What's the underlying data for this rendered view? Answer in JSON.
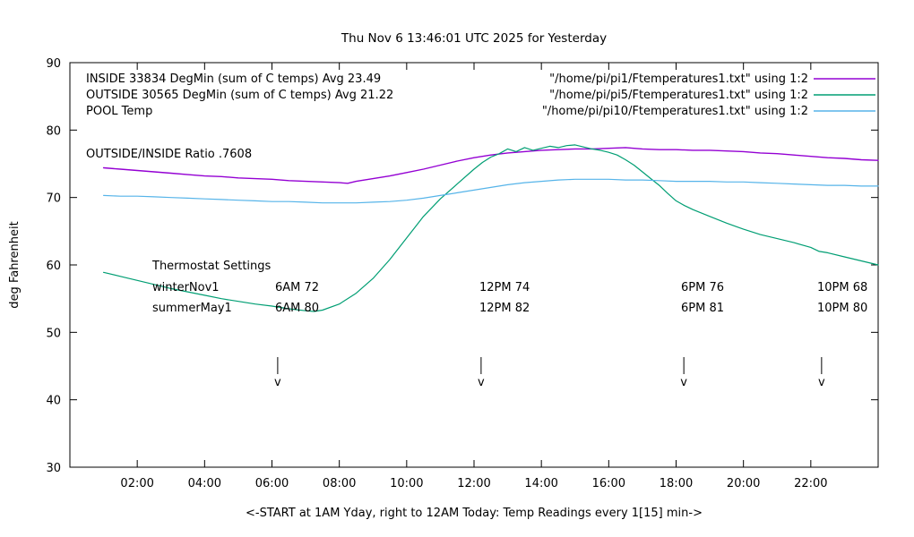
{
  "chart_data": {
    "type": "line",
    "title": "Thu Nov  6 13:46:01 UTC 2025 for Yesterday",
    "xlabel": "<-START at 1AM Yday, right to 12AM Today:  Temp Readings every 1[15] min->",
    "ylabel": "deg Fahrenheit",
    "xlim": [
      0,
      24
    ],
    "ylim": [
      30,
      90
    ],
    "grid": false,
    "legend_position": "top-inside",
    "x_ticks": [
      {
        "value": 2,
        "label": "02:00"
      },
      {
        "value": 4,
        "label": "04:00"
      },
      {
        "value": 6,
        "label": "06:00"
      },
      {
        "value": 8,
        "label": "08:00"
      },
      {
        "value": 10,
        "label": "10:00"
      },
      {
        "value": 12,
        "label": "12:00"
      },
      {
        "value": 14,
        "label": "14:00"
      },
      {
        "value": 16,
        "label": "16:00"
      },
      {
        "value": 18,
        "label": "18:00"
      },
      {
        "value": 20,
        "label": "20:00"
      },
      {
        "value": 22,
        "label": "22:00"
      }
    ],
    "y_ticks": [
      {
        "value": 30,
        "label": "30"
      },
      {
        "value": 40,
        "label": "40"
      },
      {
        "value": 50,
        "label": "50"
      },
      {
        "value": 60,
        "label": "60"
      },
      {
        "value": 70,
        "label": "70"
      },
      {
        "value": 80,
        "label": "80"
      },
      {
        "value": 90,
        "label": "90"
      }
    ],
    "series": [
      {
        "name": "INSIDE",
        "legend_label": "INSIDE 33834 DegMin (sum of C temps) Avg 23.49",
        "file_label": "\"/home/pi/pi1/Ftemperatures1.txt\" using 1:2",
        "color": "#9400d3",
        "points": [
          [
            1,
            74.4
          ],
          [
            1.5,
            74.2
          ],
          [
            2,
            74
          ],
          [
            2.5,
            73.8
          ],
          [
            3,
            73.6
          ],
          [
            3.5,
            73.4
          ],
          [
            4,
            73.2
          ],
          [
            4.5,
            73.1
          ],
          [
            5,
            72.9
          ],
          [
            5.5,
            72.8
          ],
          [
            6,
            72.7
          ],
          [
            6.5,
            72.5
          ],
          [
            7,
            72.4
          ],
          [
            7.5,
            72.3
          ],
          [
            8,
            72.2
          ],
          [
            8.25,
            72.1
          ],
          [
            8.5,
            72.4
          ],
          [
            9,
            72.8
          ],
          [
            9.5,
            73.2
          ],
          [
            10,
            73.7
          ],
          [
            10.5,
            74.2
          ],
          [
            11,
            74.8
          ],
          [
            11.5,
            75.4
          ],
          [
            12,
            75.9
          ],
          [
            12.5,
            76.3
          ],
          [
            13,
            76.6
          ],
          [
            13.5,
            76.8
          ],
          [
            14,
            77
          ],
          [
            14.5,
            77.1
          ],
          [
            15,
            77.2
          ],
          [
            15.5,
            77.2
          ],
          [
            16,
            77.3
          ],
          [
            16.5,
            77.4
          ],
          [
            17,
            77.2
          ],
          [
            17.5,
            77.1
          ],
          [
            18,
            77.1
          ],
          [
            18.5,
            77
          ],
          [
            19,
            77
          ],
          [
            19.5,
            76.9
          ],
          [
            20,
            76.8
          ],
          [
            20.5,
            76.6
          ],
          [
            21,
            76.5
          ],
          [
            21.5,
            76.3
          ],
          [
            22,
            76.1
          ],
          [
            22.5,
            75.9
          ],
          [
            23,
            75.8
          ],
          [
            23.5,
            75.6
          ],
          [
            24,
            75.5
          ]
        ]
      },
      {
        "name": "OUTSIDE",
        "legend_label": "OUTSIDE 30565 DegMin (sum of C temps) Avg 21.22",
        "file_label": "\"/home/pi/pi5/Ftemperatures1.txt\" using 1:2",
        "color": "#009e73",
        "points": [
          [
            1,
            58.9
          ],
          [
            1.5,
            58.3
          ],
          [
            2,
            57.7
          ],
          [
            2.5,
            57.1
          ],
          [
            3,
            56.5
          ],
          [
            3.5,
            56
          ],
          [
            4,
            55.5
          ],
          [
            4.5,
            55
          ],
          [
            5,
            54.6
          ],
          [
            5.5,
            54.2
          ],
          [
            6,
            53.9
          ],
          [
            6.5,
            53.5
          ],
          [
            7,
            53.2
          ],
          [
            7.25,
            53.1
          ],
          [
            7.5,
            53.3
          ],
          [
            8,
            54.2
          ],
          [
            8.5,
            55.8
          ],
          [
            9,
            58
          ],
          [
            9.5,
            60.8
          ],
          [
            10,
            64
          ],
          [
            10.5,
            67.2
          ],
          [
            11,
            69.8
          ],
          [
            11.5,
            72
          ],
          [
            12,
            74.2
          ],
          [
            12.25,
            75.2
          ],
          [
            12.5,
            76
          ],
          [
            12.75,
            76.5
          ],
          [
            13,
            77.2
          ],
          [
            13.25,
            76.8
          ],
          [
            13.5,
            77.4
          ],
          [
            13.75,
            77
          ],
          [
            14,
            77.3
          ],
          [
            14.25,
            77.6
          ],
          [
            14.5,
            77.4
          ],
          [
            14.75,
            77.7
          ],
          [
            15,
            77.8
          ],
          [
            15.25,
            77.5
          ],
          [
            15.5,
            77.2
          ],
          [
            15.75,
            77
          ],
          [
            16,
            76.7
          ],
          [
            16.25,
            76.3
          ],
          [
            16.5,
            75.6
          ],
          [
            16.75,
            74.8
          ],
          [
            17,
            73.8
          ],
          [
            17.25,
            72.8
          ],
          [
            17.5,
            71.8
          ],
          [
            17.75,
            70.6
          ],
          [
            18,
            69.5
          ],
          [
            18.25,
            68.8
          ],
          [
            18.5,
            68.2
          ],
          [
            19,
            67.2
          ],
          [
            19.5,
            66.2
          ],
          [
            20,
            65.3
          ],
          [
            20.5,
            64.5
          ],
          [
            21,
            63.9
          ],
          [
            21.5,
            63.3
          ],
          [
            22,
            62.6
          ],
          [
            22.25,
            62
          ],
          [
            22.5,
            61.8
          ],
          [
            23,
            61.2
          ],
          [
            23.5,
            60.6
          ],
          [
            24,
            60
          ]
        ]
      },
      {
        "name": "POOL",
        "legend_label": "POOL Temp",
        "file_label": "\"/home/pi/pi10/Ftemperatures1.txt\" using 1:2",
        "color": "#56b4e9",
        "points": [
          [
            1,
            70.3
          ],
          [
            1.5,
            70.2
          ],
          [
            2,
            70.2
          ],
          [
            2.5,
            70.1
          ],
          [
            3,
            70
          ],
          [
            3.5,
            69.9
          ],
          [
            4,
            69.8
          ],
          [
            4.5,
            69.7
          ],
          [
            5,
            69.6
          ],
          [
            5.5,
            69.5
          ],
          [
            6,
            69.4
          ],
          [
            6.5,
            69.4
          ],
          [
            7,
            69.3
          ],
          [
            7.5,
            69.2
          ],
          [
            8,
            69.2
          ],
          [
            8.5,
            69.2
          ],
          [
            9,
            69.3
          ],
          [
            9.5,
            69.4
          ],
          [
            10,
            69.6
          ],
          [
            10.5,
            69.9
          ],
          [
            11,
            70.3
          ],
          [
            11.5,
            70.7
          ],
          [
            12,
            71.1
          ],
          [
            12.5,
            71.5
          ],
          [
            13,
            71.9
          ],
          [
            13.5,
            72.2
          ],
          [
            14,
            72.4
          ],
          [
            14.5,
            72.6
          ],
          [
            15,
            72.7
          ],
          [
            15.5,
            72.7
          ],
          [
            16,
            72.7
          ],
          [
            16.5,
            72.6
          ],
          [
            17,
            72.6
          ],
          [
            17.5,
            72.5
          ],
          [
            18,
            72.4
          ],
          [
            18.5,
            72.4
          ],
          [
            19,
            72.4
          ],
          [
            19.5,
            72.3
          ],
          [
            20,
            72.3
          ],
          [
            20.5,
            72.2
          ],
          [
            21,
            72.1
          ],
          [
            21.5,
            72
          ],
          [
            22,
            71.9
          ],
          [
            22.5,
            71.8
          ],
          [
            23,
            71.8
          ],
          [
            23.5,
            71.7
          ],
          [
            24,
            71.7
          ]
        ]
      }
    ],
    "annotations": {
      "ratio_text": "OUTSIDE/INSIDE Ratio .7608",
      "thermostat": {
        "heading": "Thermostat Settings",
        "rows": [
          {
            "name": "winterNov1",
            "settings": [
              "6AM 72",
              "12PM 74",
              "6PM 76",
              "10PM 68"
            ]
          },
          {
            "name": "summerMay1",
            "settings": [
              "6AM 80",
              "12PM 82",
              "6PM 81",
              "10PM 80"
            ]
          }
        ]
      },
      "arrow_hours": [
        6.17,
        12.21,
        18.23,
        22.32
      ],
      "arrow_glyph": "v"
    }
  }
}
